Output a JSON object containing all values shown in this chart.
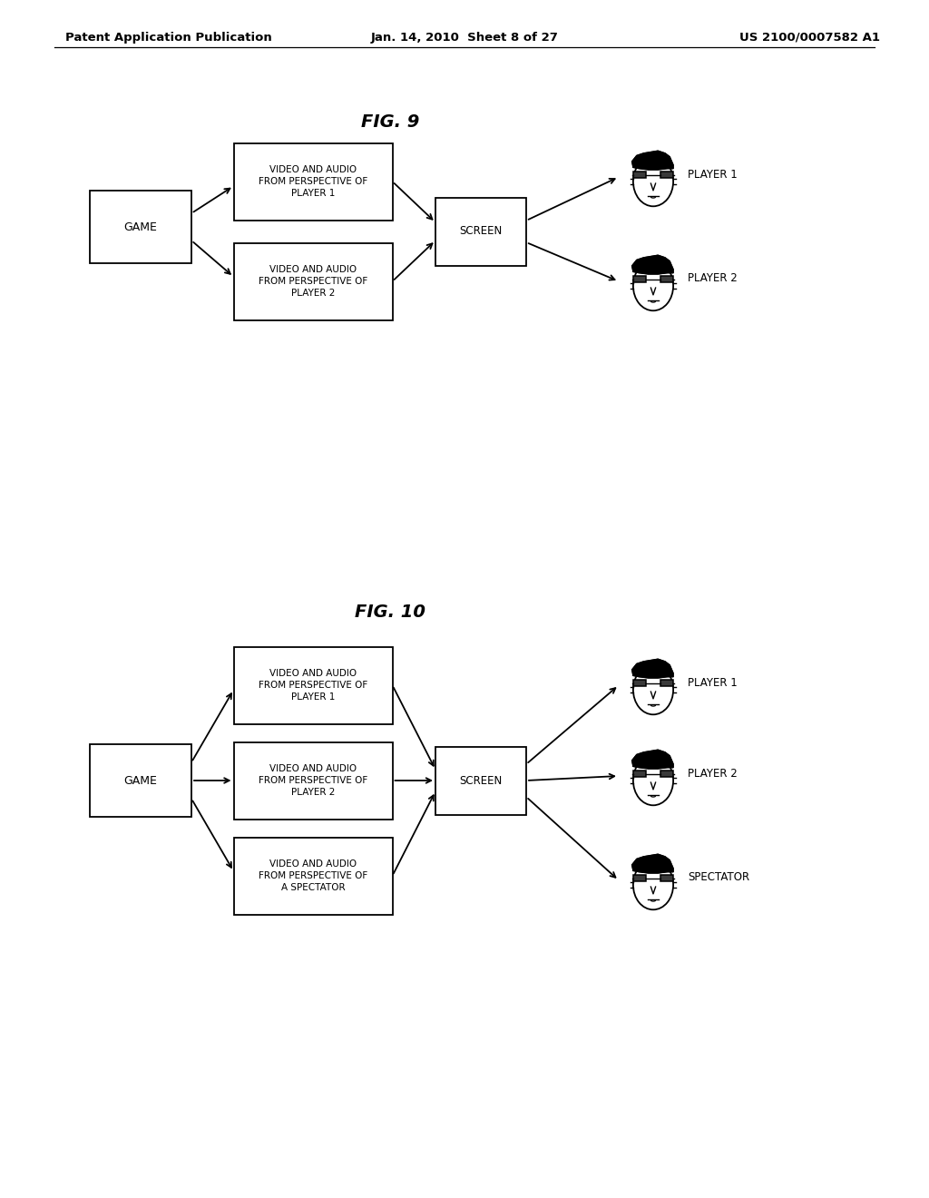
{
  "bg_color": "#ffffff",
  "header_left": "Patent Application Publication",
  "header_center": "Jan. 14, 2010  Sheet 8 of 27",
  "header_right_text": "US 2100/0007582 A1",
  "fig9_title": "FIG. 9",
  "fig10_title": "FIG. 10",
  "fig9": {
    "box1_text": "VIDEO AND AUDIO\nFROM PERSPECTIVE OF\nPLAYER 1",
    "box2_text": "VIDEO AND AUDIO\nFROM PERSPECTIVE OF\nPLAYER 2",
    "game_text": "GAME",
    "screen_text": "SCREEN",
    "player1_label": "PLAYER 1",
    "player2_label": "PLAYER 2"
  },
  "fig10": {
    "box1_text": "VIDEO AND AUDIO\nFROM PERSPECTIVE OF\nPLAYER 1",
    "box2_text": "VIDEO AND AUDIO\nFROM PERSPECTIVE OF\nPLAYER 2",
    "box3_text": "VIDEO AND AUDIO\nFROM PERSPECTIVE OF\nA SPECTATOR",
    "game_text": "GAME",
    "screen_text": "SCREEN",
    "player1_label": "PLAYER 1",
    "player2_label": "PLAYER 2",
    "spectator_label": "SPECTATOR"
  }
}
